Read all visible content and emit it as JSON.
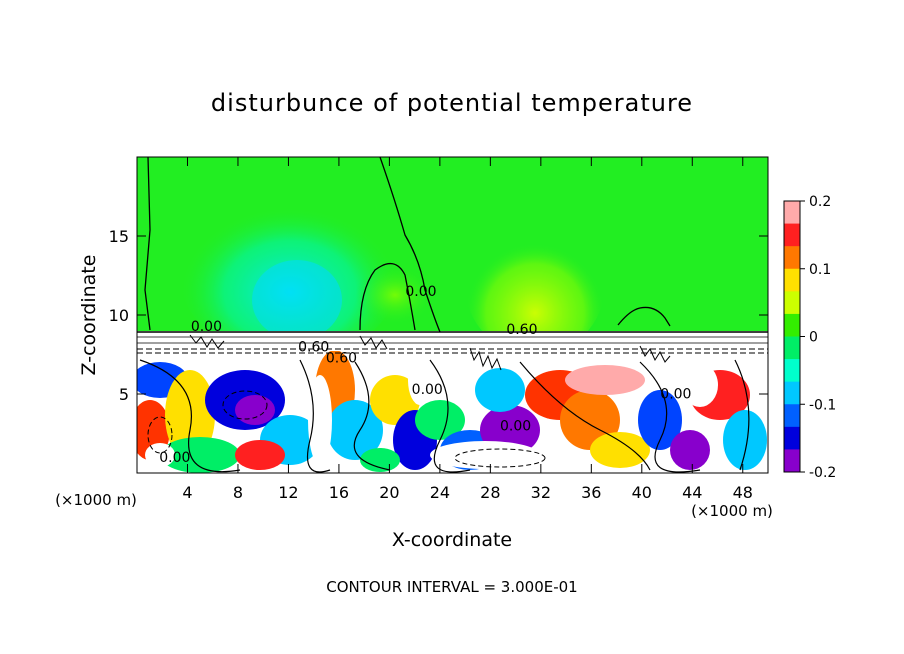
{
  "chart_data": {
    "type": "heatmap",
    "title": "disturbunce of potential temperature",
    "xlabel": "X-coordinate",
    "ylabel": "Z-coordinate",
    "x_unit": "(×1000 m)",
    "z_unit": "(×1000 m)",
    "xlim": [
      0,
      50
    ],
    "ylim": [
      0,
      20
    ],
    "x_ticks": [
      4,
      8,
      12,
      16,
      20,
      24,
      28,
      32,
      36,
      40,
      44,
      48
    ],
    "y_ticks": [
      5,
      10,
      15
    ],
    "colorbar": {
      "range": [
        -0.2,
        0.2
      ],
      "tick_values": [
        0.2,
        0.1,
        0,
        -0.1,
        -0.2
      ],
      "tick_labels": [
        "0.2",
        "0.1",
        "0",
        "-0.1",
        "-0.2"
      ],
      "colors": [
        "#ffaaaa",
        "#ff2020",
        "#ff7800",
        "#ffe000",
        "#ccff00",
        "#33ee00",
        "#00ee66",
        "#00ffcc",
        "#00c8ff",
        "#0060ff",
        "#0000dd",
        "#8800cc"
      ]
    },
    "contour_labels": [
      {
        "text": "0.00",
        "x": 5.5,
        "z": 9.0
      },
      {
        "text": "0.60",
        "x": 30.5,
        "z": 8.8
      },
      {
        "text": "0.60",
        "x": 14.0,
        "z": 7.7
      },
      {
        "text": "0.60",
        "x": 16.2,
        "z": 7.0
      },
      {
        "text": "0.00",
        "x": 22.5,
        "z": 11.2
      },
      {
        "text": "0.00",
        "x": 23.0,
        "z": 5.0
      },
      {
        "text": "0.00",
        "x": 30.0,
        "z": 2.7
      },
      {
        "text": "0.00",
        "x": 42.7,
        "z": 4.7
      },
      {
        "text": "0.00",
        "x": 3.0,
        "z": 0.7
      }
    ],
    "contour_interval_text": "CONTOUR INTERVAL = 3.000E-01"
  }
}
